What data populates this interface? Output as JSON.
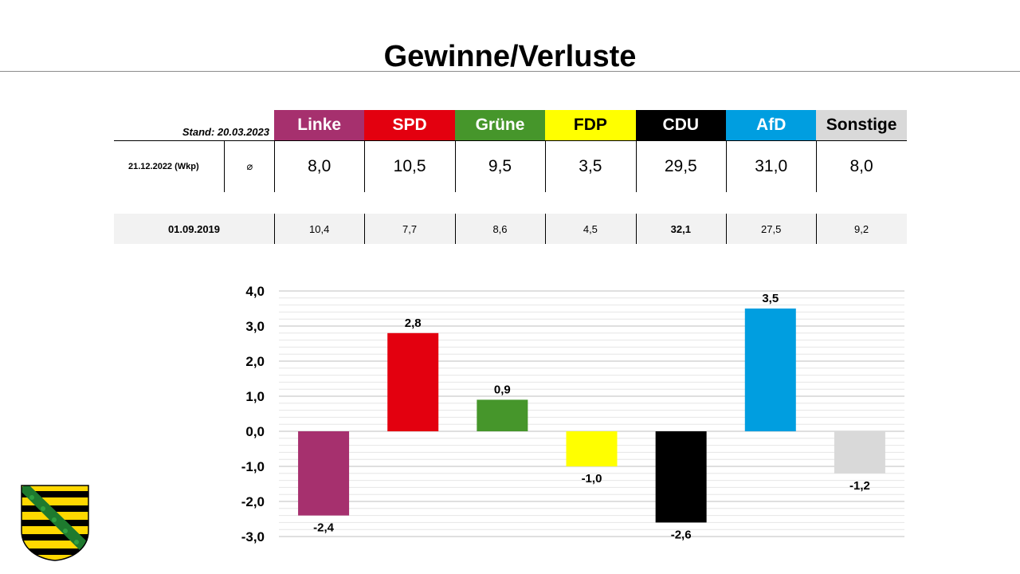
{
  "title": "Gewinne/Verluste",
  "table": {
    "stand": "Stand: 20.03.2023",
    "row1": {
      "label": "21.12.2022 (Wkp)",
      "avg_symbol": "⌀",
      "values": [
        "8,0",
        "10,5",
        "9,5",
        "3,5",
        "29,5",
        "31,0",
        "8,0"
      ]
    },
    "row2": {
      "label": "01.09.2019",
      "values": [
        "10,4",
        "7,7",
        "8,6",
        "4,5",
        "32,1",
        "27,5",
        "9,2"
      ]
    }
  },
  "parties": [
    {
      "name": "Linke",
      "bg": "#A6306E",
      "fg": "#ffffff"
    },
    {
      "name": "SPD",
      "bg": "#E3000F",
      "fg": "#ffffff"
    },
    {
      "name": "Grüne",
      "bg": "#46962B",
      "fg": "#ffffff"
    },
    {
      "name": "FDP",
      "bg": "#FFFF00",
      "fg": "#000000"
    },
    {
      "name": "CDU",
      "bg": "#000000",
      "fg": "#ffffff"
    },
    {
      "name": "AfD",
      "bg": "#009EE0",
      "fg": "#ffffff"
    },
    {
      "name": "Sonstige",
      "bg": "#D9D9D9",
      "fg": "#000000"
    }
  ],
  "chart_data": {
    "type": "bar",
    "title": "Gewinne/Verluste",
    "categories": [
      "Linke",
      "SPD",
      "Grüne",
      "FDP",
      "CDU",
      "AfD",
      "Sonstige"
    ],
    "values": [
      -2.4,
      2.8,
      0.9,
      -1.0,
      -2.6,
      3.5,
      -1.2
    ],
    "value_labels": [
      "-2,4",
      "2,8",
      "0,9",
      "-1,0",
      "-2,6",
      "3,5",
      "-1,2"
    ],
    "colors": [
      "#A6306E",
      "#E3000F",
      "#46962B",
      "#FFFF00",
      "#000000",
      "#009EE0",
      "#D9D9D9"
    ],
    "ylim": [
      -3.0,
      4.0
    ],
    "yticks": [
      4.0,
      3.0,
      2.0,
      1.0,
      0.0,
      -1.0,
      -2.0,
      -3.0
    ],
    "ytick_labels": [
      "4,0",
      "3,0",
      "2,0",
      "1,0",
      "0,0",
      "-1,0",
      "-2,0",
      "-3,0"
    ],
    "xlabel": "",
    "ylabel": "",
    "grid": true
  }
}
